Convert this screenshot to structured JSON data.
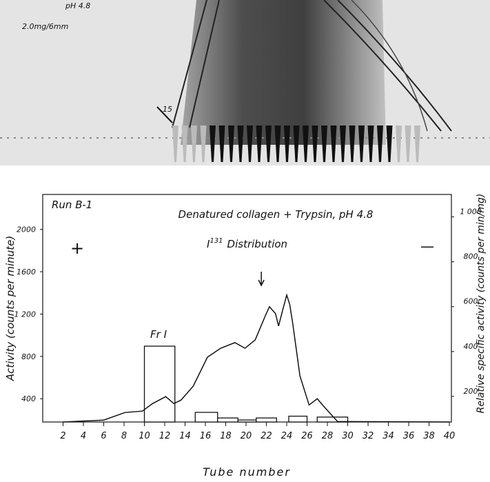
{
  "photo_annotations": [
    "pH 4.8",
    "2.0mg/6mm",
    "15"
  ],
  "chart_data": {
    "type": "bar-line",
    "annotations": {
      "run": "Run B-1",
      "subtitle": "Denatured collagen + Trypsin, pH 4.8",
      "title_base": "I",
      "title_sup": "131",
      "title_rest": "Distribution",
      "plus": "+",
      "minus": "—",
      "fraction": "Fr I"
    },
    "xlabel": "Tube number",
    "ylabel": "Activity (counts per minute)",
    "y2label": "Relative specific activity (counts per min/mg)",
    "xlim": [
      0,
      40.2
    ],
    "xticks": [
      2,
      4,
      6,
      8,
      10,
      12,
      14,
      16,
      18,
      20,
      22,
      24,
      26,
      28,
      30,
      32,
      34,
      36,
      38,
      40
    ],
    "ylim": [
      180,
      2330
    ],
    "yticks": [
      400,
      800,
      {
        "value": 1200,
        "label": "1 200"
      },
      1600,
      2000
    ],
    "y2lim": [
      86,
      1100
    ],
    "y2ticks": [
      200,
      400,
      600,
      800,
      {
        "value": 1000,
        "label": "1 000"
      }
    ],
    "bars": {
      "axis": "y2",
      "color": "#ffffff",
      "starts": [
        10,
        15,
        17.2,
        19.2,
        21,
        24.2,
        27
      ],
      "ends": [
        13,
        17.2,
        19.2,
        21,
        23,
        26,
        30
      ],
      "values": [
        424,
        129,
        104,
        95,
        104,
        112,
        108
      ]
    },
    "curve": {
      "axis": "y",
      "color": "#111111",
      "x": [
        2,
        6,
        8.1,
        9.8,
        10.8,
        12.1,
        12.9,
        13.6,
        14.8,
        16.2,
        17.5,
        18.9,
        19.9,
        20.9,
        21.9,
        22.3,
        22.9,
        23.2,
        23.6,
        24,
        24.3,
        24.6,
        25.3,
        26.2,
        27,
        27.7,
        29,
        40
      ],
      "values": [
        180,
        198,
        270,
        283,
        354,
        420,
        354,
        387,
        518,
        792,
        877,
        930,
        877,
        956,
        1185,
        1270,
        1204,
        1087,
        1237,
        1380,
        1289,
        1106,
        616,
        341,
        400,
        322,
        185,
        180
      ]
    },
    "arrow_x": 21.5
  }
}
